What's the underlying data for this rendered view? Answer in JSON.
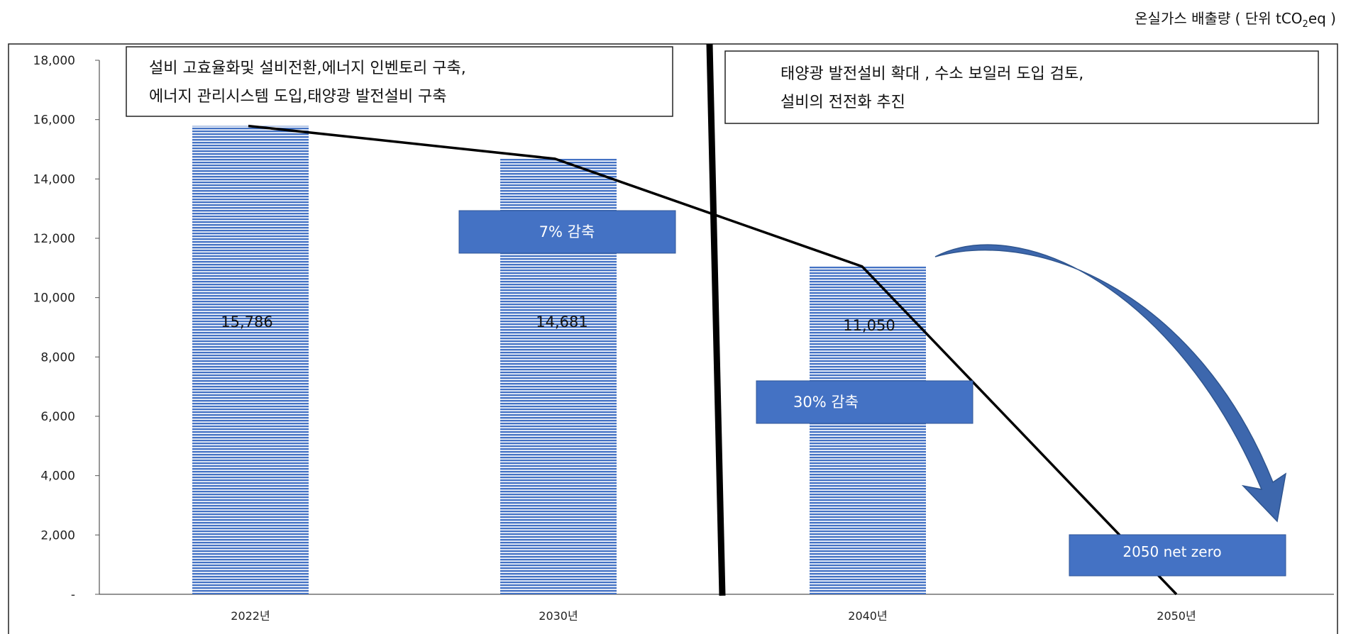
{
  "header": {
    "unit_prefix": "온실가스 배출량 ( 단위 tCO",
    "unit_sub": "2",
    "unit_suffix": "eq )"
  },
  "chart_data": {
    "type": "bar",
    "categories": [
      "2022년",
      "2030년",
      "2040년",
      "2050년"
    ],
    "values": [
      15786,
      14681,
      11050,
      null
    ],
    "data_labels": [
      "15,786",
      "14,681",
      "11,050",
      ""
    ],
    "trend_line": [
      15786,
      14681,
      11050,
      0
    ],
    "ylim": [
      0,
      18000
    ],
    "yticks": [
      0,
      2000,
      4000,
      6000,
      8000,
      10000,
      12000,
      14000,
      16000,
      18000
    ],
    "ytick_labels": [
      "-",
      "2,000",
      "4,000",
      "6,000",
      "8,000",
      "10,000",
      "12,000",
      "14,000",
      "16,000",
      "18,000"
    ],
    "title": "",
    "xlabel": "",
    "ylabel": "",
    "grid": false,
    "bar_color": "#4472c4",
    "box_color": "#4472c4",
    "annotations": {
      "phase1": [
        "설비 고효율화및 설비전환,에너지 인벤토리 구축,",
        "에너지 관리시스템 도입,태양광 발전설비 구축"
      ],
      "phase2": [
        "태양광 발전설비 확대 , 수소 보일러 도입 검토,",
        "설비의 전전화 추진"
      ],
      "reduce_2030": "7% 감축",
      "reduce_2040": "30% 감축",
      "netzero": "2050  net zero"
    }
  }
}
